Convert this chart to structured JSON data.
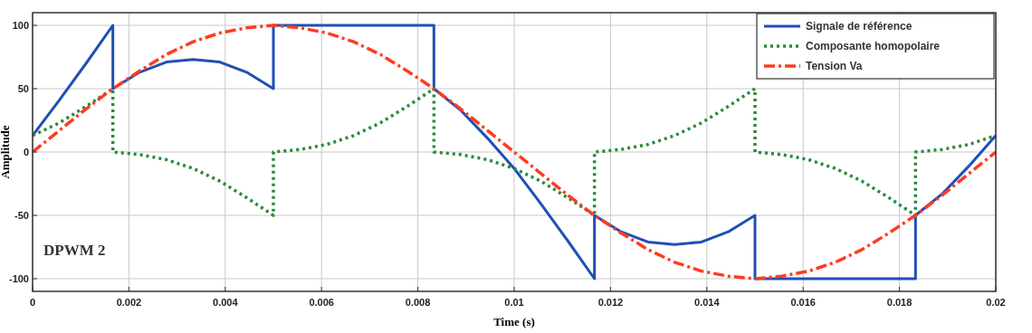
{
  "chart_data": {
    "type": "line",
    "xlabel": "Time (s)",
    "ylabel": "Amplitude",
    "annotations": [
      "DPWM 2"
    ],
    "xlim": [
      0,
      0.02
    ],
    "ylim": [
      -110,
      110
    ],
    "xticks": [
      0,
      0.002,
      0.004,
      0.006,
      0.008,
      0.01,
      0.012,
      0.014,
      0.016,
      0.018,
      0.02
    ],
    "yticks": [
      -100,
      -50,
      0,
      50,
      100
    ],
    "grid": true,
    "legend": "top right",
    "marker": "none",
    "series": [
      {
        "name": "Signale de référence",
        "color": "#1f4fb4",
        "line_style": "solid",
        "x": [
          0,
          0.000556,
          0.001111,
          0.001667,
          0.001667,
          0.002222,
          0.002778,
          0.003333,
          0.003889,
          0.004444,
          0.005,
          0.005,
          0.008333,
          0.008333,
          0.008889,
          0.009444,
          0.01,
          0.010556,
          0.011111,
          0.011667,
          0.011667,
          0.012222,
          0.012778,
          0.013333,
          0.013889,
          0.014444,
          0.015,
          0.015,
          0.018333,
          0.018333,
          0.018889,
          0.019444,
          0.02
        ],
        "values": [
          13,
          41,
          70,
          100,
          50,
          63,
          71,
          73,
          71,
          63,
          50,
          100,
          100,
          50,
          33,
          11,
          -13,
          -41,
          -70,
          -100,
          -50,
          -63,
          -71,
          -73,
          -71,
          -63,
          -50,
          -100,
          -100,
          -50,
          -33,
          -11,
          13
        ]
      },
      {
        "name": "Composante homopolaire",
        "color": "#2a8a3a",
        "line_style": "dotted",
        "x": [
          0,
          0.000556,
          0.001111,
          0.001667,
          0.001667,
          0.002222,
          0.002778,
          0.003333,
          0.003889,
          0.004444,
          0.005,
          0.005,
          0.005556,
          0.006111,
          0.006667,
          0.007222,
          0.007778,
          0.008333,
          0.008333,
          0.008889,
          0.009444,
          0.01,
          0.010556,
          0.011111,
          0.011667,
          0.011667,
          0.012222,
          0.012778,
          0.013333,
          0.013889,
          0.014444,
          0.015,
          0.015,
          0.015556,
          0.016111,
          0.016667,
          0.017222,
          0.017778,
          0.018333,
          0.018333,
          0.018889,
          0.019444,
          0.02
        ],
        "values": [
          13,
          23,
          36,
          50,
          0,
          -2,
          -6,
          -13,
          -23,
          -36,
          -50,
          0,
          2,
          6,
          13,
          23,
          36,
          50,
          0,
          -2,
          -6,
          -13,
          -23,
          -36,
          -50,
          0,
          2,
          6,
          13,
          23,
          36,
          50,
          0,
          -2,
          -6,
          -13,
          -23,
          -36,
          -50,
          0,
          2,
          6,
          13
        ]
      },
      {
        "name": "Tension Va",
        "color": "#ff3b1f",
        "line_style": "dashed",
        "x": [
          0,
          0.000556,
          0.001111,
          0.001667,
          0.002222,
          0.002778,
          0.003333,
          0.003889,
          0.004444,
          0.005,
          0.005556,
          0.006111,
          0.006667,
          0.007222,
          0.007778,
          0.008333,
          0.008889,
          0.009444,
          0.01,
          0.010556,
          0.011111,
          0.011667,
          0.012222,
          0.012778,
          0.013333,
          0.013889,
          0.014444,
          0.015,
          0.015556,
          0.016111,
          0.016667,
          0.017222,
          0.017778,
          0.018333,
          0.018889,
          0.019444,
          0.02
        ],
        "values": [
          0,
          17,
          34,
          50,
          64,
          77,
          87,
          94,
          98,
          100,
          98,
          94,
          87,
          77,
          64,
          50,
          34,
          17,
          0,
          -17,
          -34,
          -50,
          -64,
          -77,
          -87,
          -94,
          -98,
          -100,
          -98,
          -94,
          -87,
          -77,
          -64,
          -50,
          -34,
          -17,
          0
        ]
      }
    ]
  }
}
